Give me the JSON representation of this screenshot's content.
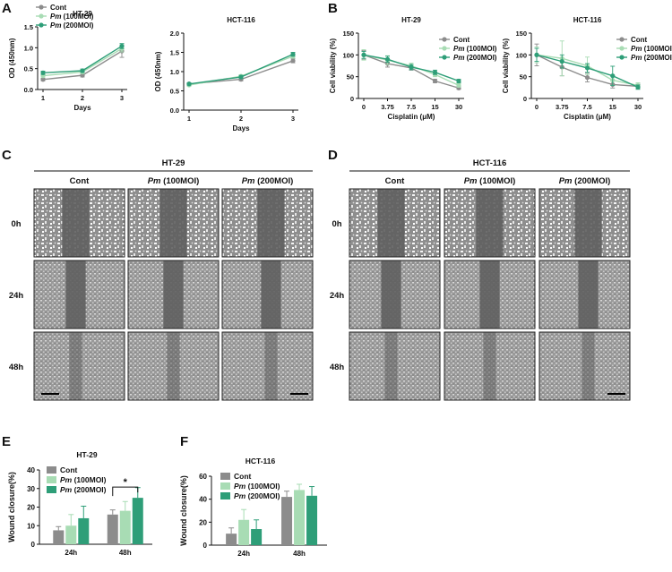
{
  "colors": {
    "cont": "#8c8c8c",
    "pm100": "#a8dcb4",
    "pm200": "#2e9e78",
    "axis": "#111111",
    "bg_dark": "#5f5f5f",
    "bg_light": "#a9a9a9",
    "cell": "#f2f2f2"
  },
  "panels": {
    "A": {
      "letter": "A",
      "legend": [
        {
          "pre": "",
          "main": "Cont",
          "key": "cont"
        },
        {
          "pre": "Pm",
          "main": " (100MOI)",
          "key": "pm100"
        },
        {
          "pre": "Pm",
          "main": " (200MOI)",
          "key": "pm200"
        }
      ],
      "charts": [
        {
          "title": "HT-29",
          "ylabel": "OD (450nm)",
          "xlabel": "Days",
          "yticks": [
            "0.0",
            "0.5",
            "1.0",
            "1.5"
          ],
          "ylim": [
            0,
            1.5
          ],
          "x": [
            1,
            2,
            3
          ],
          "xticks": [
            "1",
            "2",
            "3"
          ],
          "series": [
            {
              "name": "Cont",
              "key": "cont",
              "values": [
                0.24,
                0.34,
                0.92
              ],
              "err": [
                0.03,
                0.04,
                0.15
              ]
            },
            {
              "name": "Pm (100MOI)",
              "key": "pm100",
              "values": [
                0.33,
                0.42,
                0.98
              ],
              "err": [
                0.03,
                0.04,
                0.08
              ]
            },
            {
              "name": "Pm (200MOI)",
              "key": "pm200",
              "values": [
                0.4,
                0.45,
                1.04
              ],
              "err": [
                0.04,
                0.04,
                0.06
              ]
            }
          ]
        },
        {
          "title": "HCT-116",
          "ylabel": "OD (450nm)",
          "xlabel": "Days",
          "yticks": [
            "0.0",
            "0.5",
            "1.0",
            "1.5",
            "2.0"
          ],
          "ylim": [
            0,
            2
          ],
          "x": [
            1,
            2,
            3
          ],
          "xticks": [
            "1",
            "2",
            "3"
          ],
          "series": [
            {
              "name": "Cont",
              "key": "cont",
              "values": [
                0.68,
                0.8,
                1.28
              ],
              "err": [
                0.03,
                0.04,
                0.05
              ]
            },
            {
              "name": "Pm (100MOI)",
              "key": "pm100",
              "values": [
                0.65,
                0.88,
                1.4
              ],
              "err": [
                0.03,
                0.04,
                0.05
              ]
            },
            {
              "name": "Pm (200MOI)",
              "key": "pm200",
              "values": [
                0.68,
                0.86,
                1.45
              ],
              "err": [
                0.03,
                0.04,
                0.05
              ]
            }
          ]
        }
      ]
    },
    "B": {
      "letter": "B",
      "legend": [
        {
          "pre": "",
          "main": "Cont",
          "key": "cont"
        },
        {
          "pre": "Pm",
          "main": " (100MOI)",
          "key": "pm100"
        },
        {
          "pre": "Pm",
          "main": " (200MOI)",
          "key": "pm200"
        }
      ],
      "charts": [
        {
          "title": "HT-29",
          "ylabel": "Cell viability  (%)",
          "xlabel": "Cisplatin (μM)",
          "yticks": [
            "0",
            "50",
            "100",
            "150"
          ],
          "ylim": [
            0,
            150
          ],
          "x": [
            0,
            1,
            2,
            3,
            4
          ],
          "xticks": [
            "0",
            "3.75",
            "7.5",
            "15",
            "30"
          ],
          "series": [
            {
              "name": "Cont",
              "key": "cont",
              "values": [
                100,
                80,
                70,
                40,
                24
              ],
              "err": [
                10,
                8,
                5,
                4,
                3
              ]
            },
            {
              "name": "Pm (100MOI)",
              "key": "pm100",
              "values": [
                100,
                88,
                75,
                55,
                30
              ],
              "err": [
                12,
                10,
                6,
                5,
                4
              ]
            },
            {
              "name": "Pm (200MOI)",
              "key": "pm200",
              "values": [
                100,
                90,
                72,
                60,
                40
              ],
              "err": [
                8,
                7,
                6,
                5,
                4
              ]
            }
          ]
        },
        {
          "title": "HCT-116",
          "ylabel": "Cell viability  (%)",
          "xlabel": "Cisplatin (μM)",
          "yticks": [
            "0",
            "50",
            "100",
            "150"
          ],
          "ylim": [
            0,
            150
          ],
          "x": [
            0,
            1,
            2,
            3,
            4
          ],
          "xticks": [
            "0",
            "3.75",
            "7.5",
            "15",
            "30"
          ],
          "series": [
            {
              "name": "Cont",
              "key": "cont",
              "values": [
                100,
                72,
                48,
                32,
                28
              ],
              "err": [
                25,
                20,
                10,
                8,
                5
              ]
            },
            {
              "name": "Pm (100MOI)",
              "key": "pm100",
              "values": [
                100,
                92,
                75,
                42,
                30
              ],
              "err": [
                18,
                40,
                20,
                12,
                6
              ]
            },
            {
              "name": "Pm (200MOI)",
              "key": "pm200",
              "values": [
                100,
                85,
                70,
                52,
                26
              ],
              "err": [
                15,
                15,
                10,
                22,
                5
              ]
            }
          ]
        }
      ]
    },
    "C": {
      "letter": "C",
      "title": "HT-29",
      "cols": [
        {
          "pre": "",
          "main": "Cont"
        },
        {
          "pre": "Pm",
          "main": " (100MOI)"
        },
        {
          "pre": "Pm",
          "main": " (200MOI)"
        }
      ],
      "rows": [
        "0h",
        "24h",
        "48h"
      ]
    },
    "D": {
      "letter": "D",
      "title": "HCT-116",
      "cols": [
        {
          "pre": "",
          "main": "Cont"
        },
        {
          "pre": "Pm",
          "main": " (100MOI)"
        },
        {
          "pre": "Pm",
          "main": " (200MOI)"
        }
      ],
      "rows": [
        "0h",
        "24h",
        "48h"
      ]
    },
    "E": {
      "letter": "E",
      "title": "HT-29",
      "ylabel": "Wound closure(%)",
      "yticks": [
        "0",
        "10",
        "20",
        "30",
        "40"
      ],
      "ylim": [
        0,
        40
      ],
      "categories": [
        "24h",
        "48h"
      ],
      "series": [
        {
          "name": "Cont",
          "key": "cont",
          "values": [
            7.5,
            16
          ],
          "err": [
            2,
            2.5
          ]
        },
        {
          "name": "Pm (100MOI)",
          "key": "pm100",
          "values": [
            10,
            18
          ],
          "err": [
            6,
            5
          ]
        },
        {
          "name": "Pm (200MOI)",
          "key": "pm200",
          "values": [
            14,
            25
          ],
          "err": [
            6.5,
            5.5
          ]
        }
      ],
      "legend": [
        {
          "pre": "",
          "main": "Cont",
          "key": "cont"
        },
        {
          "pre": "Pm",
          "main": " (100MOI)",
          "key": "pm100"
        },
        {
          "pre": "Pm",
          "main": " (200MOI)",
          "key": "pm200"
        }
      ],
      "significance": "*"
    },
    "F": {
      "letter": "F",
      "title": "HCT-116",
      "ylabel": "Wound closure(%)",
      "yticks": [
        "0",
        "20",
        "40",
        "60"
      ],
      "ylim": [
        0,
        60
      ],
      "categories": [
        "24h",
        "48h"
      ],
      "series": [
        {
          "name": "Cont",
          "key": "cont",
          "values": [
            10,
            42
          ],
          "err": [
            5,
            5
          ]
        },
        {
          "name": "Pm (100MOI)",
          "key": "pm100",
          "values": [
            22,
            48
          ],
          "err": [
            9,
            5
          ]
        },
        {
          "name": "Pm (200MOI)",
          "key": "pm200",
          "values": [
            14,
            43
          ],
          "err": [
            8,
            8
          ]
        }
      ],
      "legend": [
        {
          "pre": "",
          "main": "Cont",
          "key": "cont"
        },
        {
          "pre": "Pm",
          "main": " (100MOI)",
          "key": "pm100"
        },
        {
          "pre": "Pm",
          "main": " (200MOI)",
          "key": "pm200"
        }
      ]
    }
  },
  "chart_data": [
    {
      "type": "line",
      "title": "HT-29",
      "xlabel": "Days",
      "ylabel": "OD (450nm)",
      "x": [
        1,
        2,
        3
      ],
      "ylim": [
        0,
        1.5
      ],
      "series": [
        {
          "name": "Cont",
          "values": [
            0.24,
            0.34,
            0.92
          ]
        },
        {
          "name": "Pm (100MOI)",
          "values": [
            0.33,
            0.42,
            0.98
          ]
        },
        {
          "name": "Pm (200MOI)",
          "values": [
            0.4,
            0.45,
            1.04
          ]
        }
      ]
    },
    {
      "type": "line",
      "title": "HCT-116",
      "xlabel": "Days",
      "ylabel": "OD (450nm)",
      "x": [
        1,
        2,
        3
      ],
      "ylim": [
        0,
        2
      ],
      "series": [
        {
          "name": "Cont",
          "values": [
            0.68,
            0.8,
            1.28
          ]
        },
        {
          "name": "Pm (100MOI)",
          "values": [
            0.65,
            0.88,
            1.4
          ]
        },
        {
          "name": "Pm (200MOI)",
          "values": [
            0.68,
            0.86,
            1.45
          ]
        }
      ]
    },
    {
      "type": "line",
      "title": "HT-29",
      "xlabel": "Cisplatin (μM)",
      "ylabel": "Cell viability (%)",
      "categories": [
        "0",
        "3.75",
        "7.5",
        "15",
        "30"
      ],
      "ylim": [
        0,
        150
      ],
      "series": [
        {
          "name": "Cont",
          "values": [
            100,
            80,
            70,
            40,
            24
          ]
        },
        {
          "name": "Pm (100MOI)",
          "values": [
            100,
            88,
            75,
            55,
            30
          ]
        },
        {
          "name": "Pm (200MOI)",
          "values": [
            100,
            90,
            72,
            60,
            40
          ]
        }
      ]
    },
    {
      "type": "line",
      "title": "HCT-116",
      "xlabel": "Cisplatin (μM)",
      "ylabel": "Cell viability (%)",
      "categories": [
        "0",
        "3.75",
        "7.5",
        "15",
        "30"
      ],
      "ylim": [
        0,
        150
      ],
      "series": [
        {
          "name": "Cont",
          "values": [
            100,
            72,
            48,
            32,
            28
          ]
        },
        {
          "name": "Pm (100MOI)",
          "values": [
            100,
            92,
            75,
            42,
            30
          ]
        },
        {
          "name": "Pm (200MOI)",
          "values": [
            100,
            85,
            70,
            52,
            26
          ]
        }
      ]
    },
    {
      "type": "bar",
      "title": "HT-29",
      "ylabel": "Wound closure(%)",
      "categories": [
        "24h",
        "48h"
      ],
      "ylim": [
        0,
        40
      ],
      "series": [
        {
          "name": "Cont",
          "values": [
            7.5,
            16
          ]
        },
        {
          "name": "Pm (100MOI)",
          "values": [
            10,
            18
          ]
        },
        {
          "name": "Pm (200MOI)",
          "values": [
            14,
            25
          ]
        }
      ]
    },
    {
      "type": "bar",
      "title": "HCT-116",
      "ylabel": "Wound closure(%)",
      "categories": [
        "24h",
        "48h"
      ],
      "ylim": [
        0,
        60
      ],
      "series": [
        {
          "name": "Cont",
          "values": [
            10,
            42
          ]
        },
        {
          "name": "Pm (100MOI)",
          "values": [
            22,
            48
          ]
        },
        {
          "name": "Pm (200MOI)",
          "values": [
            14,
            43
          ]
        }
      ]
    }
  ]
}
